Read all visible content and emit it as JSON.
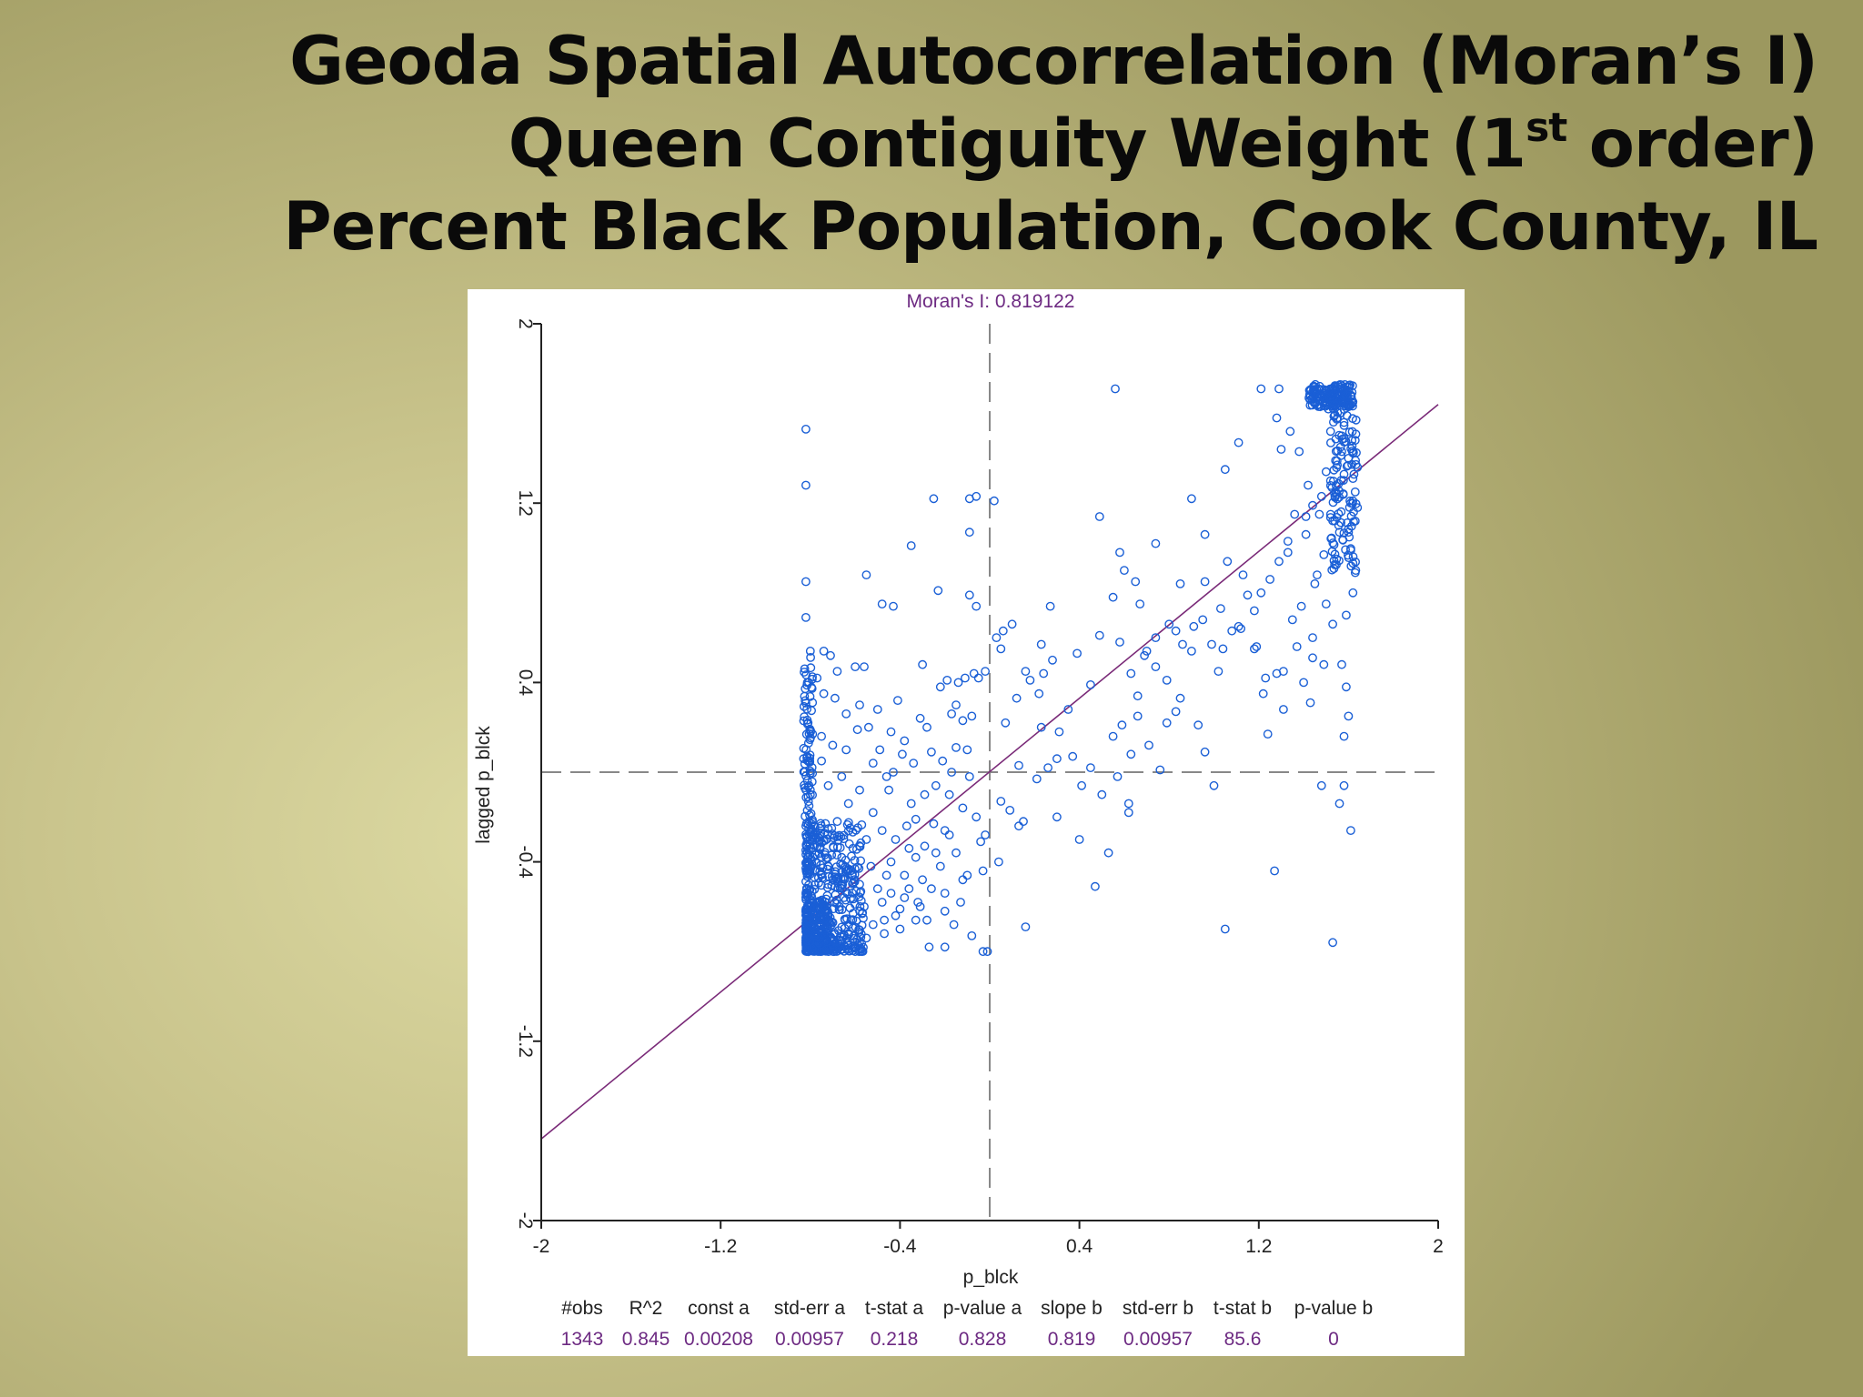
{
  "slide": {
    "title_line1": "Geoda Spatial Autocorrelation (Moran’s I)",
    "title_line2_a": "Queen Contiguity Weight (1",
    "title_line2_sup": "st",
    "title_line2_b": " order)",
    "title_line3": "Percent Black Population, Cook County, IL"
  },
  "colors": {
    "point": "#1a5fd6",
    "regression_line": "#7a2a78",
    "moran_title": "#6d2a82",
    "axes": "#222222",
    "dashed_ref": "#888888"
  },
  "chart_data": {
    "type": "scatter",
    "title": "Moran's I: 0.819122",
    "xlabel": "p_blck",
    "ylabel": "lagged p_blck",
    "xlim": [
      -2,
      2
    ],
    "ylim": [
      -2,
      2
    ],
    "x_ticks": [
      "-2",
      "-1.2",
      "-0.4",
      "0.4",
      "1.2",
      "2"
    ],
    "y_ticks": [
      "-2",
      "-1.2",
      "-0.4",
      "0.4",
      "1.2",
      "2"
    ],
    "reference_lines": {
      "x": 0,
      "y": 0
    },
    "regression": {
      "intercept": 0.00208,
      "slope": 0.819
    },
    "stats": {
      "headers": [
        "#obs",
        "R^2",
        "const a",
        "std-err a",
        "t-stat a",
        "p-value a",
        "slope b",
        "std-err b",
        "t-stat b",
        "p-value b"
      ],
      "values": [
        "1343",
        "0.845",
        "0.00208",
        "0.00957",
        "0.218",
        "0.828",
        "0.819",
        "0.00957",
        "85.6",
        "0"
      ]
    },
    "points": [
      [
        -0.82,
        1.53
      ],
      [
        -0.82,
        1.28
      ],
      [
        -0.82,
        0.85
      ],
      [
        -0.82,
        0.69
      ],
      [
        -0.8,
        0.54
      ],
      [
        -0.74,
        0.54
      ],
      [
        -0.55,
        0.88
      ],
      [
        -0.6,
        0.47
      ],
      [
        -0.56,
        0.47
      ],
      [
        -0.48,
        0.75
      ],
      [
        -0.43,
        0.74
      ],
      [
        -0.35,
        1.01
      ],
      [
        -0.25,
        1.22
      ],
      [
        -0.23,
        0.81
      ],
      [
        -0.3,
        0.48
      ],
      [
        -0.06,
        1.23
      ],
      [
        -0.09,
        1.22
      ],
      [
        -0.09,
        1.07
      ],
      [
        -0.09,
        0.79
      ],
      [
        -0.06,
        0.74
      ],
      [
        0.02,
        1.21
      ],
      [
        0.1,
        0.66
      ],
      [
        0.06,
        0.63
      ],
      [
        0.03,
        0.6
      ],
      [
        0.05,
        0.55
      ],
      [
        0.27,
        0.74
      ],
      [
        0.23,
        0.57
      ],
      [
        0.39,
        0.53
      ],
      [
        -0.19,
        0.41
      ],
      [
        -0.14,
        0.4
      ],
      [
        -0.11,
        0.42
      ],
      [
        -0.07,
        0.44
      ],
      [
        -0.05,
        0.42
      ],
      [
        -0.22,
        0.38
      ],
      [
        -0.17,
        0.26
      ],
      [
        -0.12,
        0.23
      ],
      [
        -0.02,
        0.45
      ],
      [
        0.12,
        0.33
      ],
      [
        0.18,
        0.41
      ],
      [
        0.24,
        0.44
      ],
      [
        0.28,
        0.5
      ],
      [
        0.22,
        0.35
      ],
      [
        0.07,
        0.22
      ],
      [
        0.31,
        0.18
      ],
      [
        0.35,
        0.28
      ],
      [
        0.3,
        0.06
      ],
      [
        0.37,
        0.07
      ],
      [
        0.56,
        1.71
      ],
      [
        0.49,
        1.14
      ],
      [
        0.58,
        0.98
      ],
      [
        0.6,
        0.9
      ],
      [
        0.55,
        0.78
      ],
      [
        0.65,
        0.85
      ],
      [
        0.58,
        0.58
      ],
      [
        0.67,
        0.75
      ],
      [
        0.7,
        0.54
      ],
      [
        0.74,
        0.47
      ],
      [
        0.85,
        0.84
      ],
      [
        0.96,
        0.85
      ],
      [
        0.91,
        0.65
      ],
      [
        0.83,
        0.63
      ],
      [
        0.86,
        0.57
      ],
      [
        0.9,
        0.54
      ],
      [
        1.06,
        0.94
      ],
      [
        1.13,
        0.88
      ],
      [
        1.15,
        0.79
      ],
      [
        1.03,
        0.73
      ],
      [
        1.08,
        0.63
      ],
      [
        1.11,
        0.65
      ],
      [
        1.19,
        0.56
      ],
      [
        1.23,
        0.42
      ],
      [
        1.28,
        0.44
      ],
      [
        1.31,
        0.45
      ],
      [
        1.22,
        0.35
      ],
      [
        1.18,
        0.55
      ],
      [
        1.35,
        0.68
      ],
      [
        1.43,
        0.31
      ],
      [
        1.44,
        0.51
      ],
      [
        1.49,
        0.48
      ],
      [
        0.66,
        0.25
      ],
      [
        0.59,
        0.21
      ],
      [
        0.63,
        0.08
      ],
      [
        0.93,
        0.21
      ],
      [
        0.96,
        0.09
      ],
      [
        1.24,
        0.17
      ],
      [
        1.0,
        -0.06
      ],
      [
        0.79,
        0.41
      ],
      [
        0.9,
        1.22
      ],
      [
        1.05,
        1.35
      ],
      [
        1.11,
        1.47
      ],
      [
        1.21,
        1.71
      ],
      [
        1.29,
        1.71
      ],
      [
        1.28,
        1.58
      ],
      [
        1.3,
        1.44
      ],
      [
        1.34,
        1.52
      ],
      [
        1.38,
        1.43
      ],
      [
        1.42,
        1.28
      ],
      [
        1.36,
        1.15
      ],
      [
        1.41,
        1.06
      ],
      [
        1.33,
        0.98
      ],
      [
        1.45,
        0.84
      ],
      [
        1.39,
        0.74
      ],
      [
        1.56,
        1.07
      ],
      [
        1.49,
        0.97
      ],
      [
        1.46,
        0.88
      ],
      [
        1.5,
        0.75
      ],
      [
        1.53,
        0.66
      ],
      [
        1.57,
        0.48
      ],
      [
        1.59,
        0.38
      ],
      [
        1.6,
        0.25
      ],
      [
        1.58,
        0.16
      ],
      [
        1.58,
        -0.06
      ],
      [
        1.48,
        -0.06
      ],
      [
        1.56,
        -0.14
      ],
      [
        1.61,
        -0.26
      ],
      [
        1.27,
        -0.44
      ],
      [
        1.05,
        -0.7
      ],
      [
        1.53,
        -0.76
      ],
      [
        0.16,
        -0.69
      ],
      [
        0.53,
        -0.36
      ],
      [
        0.47,
        -0.51
      ],
      [
        0.4,
        -0.3
      ],
      [
        0.3,
        -0.2
      ],
      [
        0.13,
        -0.24
      ],
      [
        0.09,
        -0.17
      ],
      [
        0.05,
        -0.13
      ],
      [
        0.41,
        -0.06
      ],
      [
        0.5,
        -0.1
      ],
      [
        0.62,
        -0.14
      ],
      [
        0.62,
        -0.18
      ],
      [
        0.57,
        -0.02
      ],
      [
        -0.01,
        -0.8
      ],
      [
        -0.03,
        -0.8
      ],
      [
        -0.2,
        -0.78
      ],
      [
        -0.27,
        -0.78
      ],
      [
        -0.16,
        -0.68
      ],
      [
        -0.13,
        -0.58
      ],
      [
        -0.1,
        -0.46
      ],
      [
        -0.04,
        -0.31
      ],
      [
        -0.03,
        -0.44
      ],
      [
        -0.02,
        -0.28
      ],
      [
        -0.06,
        -0.2
      ],
      [
        -0.12,
        -0.16
      ],
      [
        -0.18,
        -0.28
      ],
      [
        -0.22,
        -0.42
      ],
      [
        -0.3,
        -0.48
      ],
      [
        -0.32,
        -0.58
      ],
      [
        -0.36,
        -0.52
      ],
      [
        -0.29,
        -0.33
      ],
      [
        -0.25,
        -0.23
      ],
      [
        -0.33,
        -0.21
      ],
      [
        -0.42,
        -0.3
      ],
      [
        -0.46,
        -0.46
      ],
      [
        -0.4,
        -0.61
      ],
      [
        -0.47,
        -0.66
      ],
      [
        -0.55,
        -0.74
      ],
      [
        -0.6,
        -0.8
      ],
      [
        -0.21,
        0.05
      ],
      [
        -0.34,
        0.04
      ],
      [
        -0.43,
        0.0
      ],
      [
        -0.52,
        0.04
      ],
      [
        -0.58,
        -0.08
      ],
      [
        -0.63,
        -0.14
      ],
      [
        -0.68,
        -0.22
      ],
      [
        -0.72,
        -0.06
      ],
      [
        -0.76,
        -0.31
      ],
      [
        -0.66,
        -0.38
      ],
      [
        -0.7,
        -0.48
      ],
      [
        -0.56,
        -0.6
      ],
      [
        -0.61,
        -0.34
      ],
      [
        -0.79,
        0.17
      ],
      [
        -0.75,
        0.16
      ],
      [
        -0.7,
        0.12
      ],
      [
        -0.64,
        0.1
      ],
      [
        -0.59,
        0.19
      ],
      [
        -0.54,
        0.2
      ],
      [
        -0.49,
        0.1
      ],
      [
        -0.46,
        -0.02
      ],
      [
        -0.38,
        0.14
      ],
      [
        -0.28,
        0.2
      ],
      [
        -0.26,
        0.09
      ],
      [
        -0.15,
        0.11
      ],
      [
        -0.17,
        0.0
      ],
      [
        -0.09,
        -0.02
      ],
      [
        -0.1,
        0.1
      ],
      [
        -0.08,
        0.25
      ],
      [
        -0.15,
        0.3
      ],
      [
        -0.31,
        0.24
      ],
      [
        -0.41,
        0.32
      ],
      [
        -0.5,
        0.28
      ],
      [
        -0.58,
        0.3
      ],
      [
        -0.64,
        0.26
      ],
      [
        -0.69,
        0.33
      ],
      [
        -0.74,
        0.35
      ],
      [
        -0.77,
        0.42
      ],
      [
        -0.81,
        0.22
      ],
      [
        -0.83,
        0.06
      ],
      [
        -0.8,
        -0.1
      ],
      [
        -0.66,
        -0.02
      ],
      [
        -0.75,
        0.05
      ],
      [
        -0.52,
        -0.18
      ],
      [
        -0.48,
        -0.26
      ],
      [
        -0.37,
        -0.24
      ],
      [
        -0.44,
        -0.4
      ],
      [
        -0.36,
        -0.34
      ],
      [
        -0.5,
        -0.52
      ],
      [
        -0.53,
        -0.42
      ],
      [
        -0.4,
        -0.7
      ],
      [
        -0.28,
        -0.66
      ],
      [
        -0.2,
        -0.54
      ],
      [
        -0.33,
        -0.66
      ],
      [
        -0.08,
        -0.73
      ],
      [
        0.04,
        -0.4
      ],
      [
        0.15,
        -0.22
      ],
      [
        0.21,
        -0.03
      ],
      [
        0.13,
        0.03
      ],
      [
        0.26,
        0.02
      ],
      [
        0.45,
        0.02
      ],
      [
        0.55,
        0.16
      ],
      [
        0.45,
        0.39
      ],
      [
        0.49,
        0.61
      ],
      [
        0.16,
        0.45
      ],
      [
        0.23,
        0.2
      ],
      [
        0.74,
        1.02
      ],
      [
        0.96,
        1.06
      ],
      [
        1.5,
        1.34
      ],
      [
        1.54,
        1.23
      ],
      [
        1.52,
        1.15
      ],
      [
        1.47,
        1.15
      ],
      [
        1.6,
        1.07
      ],
      [
        1.61,
        0.99
      ],
      [
        1.63,
        0.89
      ],
      [
        1.62,
        0.8
      ],
      [
        1.59,
        0.7
      ],
      [
        1.44,
        0.6
      ],
      [
        1.37,
        0.56
      ],
      [
        1.4,
        0.4
      ],
      [
        1.31,
        0.28
      ],
      [
        1.12,
        0.64
      ],
      [
        1.04,
        0.55
      ],
      [
        1.02,
        0.45
      ],
      [
        0.99,
        0.57
      ],
      [
        0.95,
        0.68
      ],
      [
        0.8,
        0.66
      ],
      [
        0.74,
        0.6
      ],
      [
        0.69,
        0.52
      ],
      [
        0.66,
        0.34
      ],
      [
        0.63,
        0.44
      ],
      [
        0.85,
        0.33
      ],
      [
        0.83,
        0.27
      ],
      [
        0.79,
        0.22
      ],
      [
        0.71,
        0.12
      ],
      [
        0.76,
        0.01
      ],
      [
        1.18,
        0.72
      ],
      [
        1.21,
        0.8
      ],
      [
        1.25,
        0.86
      ],
      [
        1.29,
        0.94
      ],
      [
        1.33,
        1.03
      ],
      [
        1.41,
        1.14
      ],
      [
        1.44,
        1.19
      ],
      [
        1.48,
        1.23
      ],
      [
        1.52,
        1.3
      ],
      [
        1.55,
        1.37
      ],
      [
        1.57,
        1.43
      ],
      [
        1.57,
        1.5
      ],
      [
        1.58,
        1.56
      ],
      [
        1.6,
        1.63
      ],
      [
        1.62,
        1.31
      ],
      [
        1.63,
        1.25
      ],
      [
        1.64,
        1.18
      ],
      [
        1.63,
        1.12
      ],
      [
        1.61,
        1.2
      ],
      [
        1.6,
        1.4
      ],
      [
        1.63,
        1.48
      ],
      [
        1.64,
        1.36
      ],
      [
        1.52,
        1.52
      ],
      [
        1.55,
        1.58
      ],
      [
        1.51,
        1.62
      ],
      [
        1.54,
        1.66
      ],
      [
        -0.68,
        0.45
      ],
      [
        -0.71,
        0.52
      ],
      [
        -0.44,
        0.18
      ],
      [
        -0.39,
        0.08
      ],
      [
        -0.24,
        -0.06
      ],
      [
        -0.18,
        -0.1
      ],
      [
        -0.29,
        -0.1
      ],
      [
        -0.35,
        -0.14
      ],
      [
        -0.45,
        -0.08
      ],
      [
        -0.55,
        -0.3
      ],
      [
        -0.62,
        -0.44
      ],
      [
        -0.65,
        -0.56
      ],
      [
        -0.58,
        -0.5
      ],
      [
        -0.48,
        -0.58
      ],
      [
        -0.44,
        -0.54
      ],
      [
        -0.38,
        -0.46
      ],
      [
        -0.33,
        -0.38
      ],
      [
        -0.24,
        -0.36
      ],
      [
        -0.2,
        -0.26
      ],
      [
        -0.15,
        -0.36
      ],
      [
        -0.12,
        -0.48
      ],
      [
        -0.2,
        -0.62
      ],
      [
        -0.26,
        -0.52
      ],
      [
        -0.31,
        -0.6
      ],
      [
        -0.38,
        -0.56
      ],
      [
        -0.42,
        -0.64
      ],
      [
        -0.47,
        -0.72
      ],
      [
        -0.52,
        -0.68
      ],
      [
        -0.58,
        -0.62
      ],
      [
        -0.63,
        -0.68
      ],
      [
        -0.67,
        -0.6
      ]
    ]
  }
}
